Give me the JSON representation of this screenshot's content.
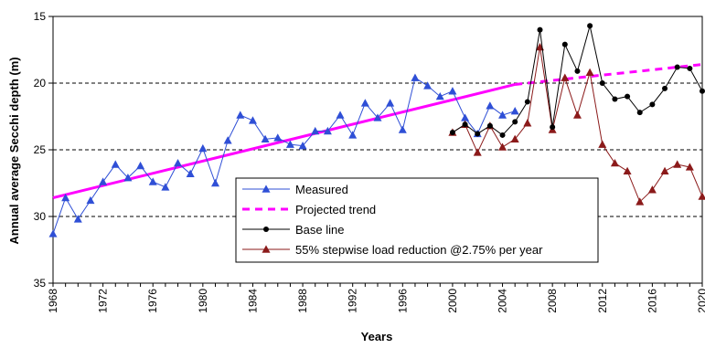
{
  "chart_data": {
    "type": "line",
    "title": "",
    "xlabel": "Years",
    "ylabel": "Annual average Secchi depth (m)",
    "xlim": [
      1968,
      2020
    ],
    "ylim": [
      15,
      35
    ],
    "y_inverted": true,
    "grid": "horizontal dashed",
    "legend_position": "lower-center",
    "x_ticks": [
      "1968",
      "1972",
      "1976",
      "1980",
      "1984",
      "1988",
      "1992",
      "1996",
      "2000",
      "2004",
      "2008",
      "2012",
      "2016",
      "2020"
    ],
    "y_ticks": [
      "15",
      "20",
      "25",
      "30",
      "35"
    ],
    "series": [
      {
        "name": "Measured",
        "color": "#2f4fd6",
        "marker": "triangle",
        "style": "solid",
        "x": [
          1968,
          1969,
          1970,
          1971,
          1972,
          1973,
          1974,
          1975,
          1976,
          1977,
          1978,
          1979,
          1980,
          1981,
          1982,
          1983,
          1984,
          1985,
          1986,
          1987,
          1988,
          1989,
          1990,
          1991,
          1992,
          1993,
          1994,
          1995,
          1996,
          1997,
          1998,
          1999,
          2000,
          2001,
          2002,
          2003,
          2004,
          2005
        ],
        "y": [
          31.3,
          28.6,
          30.2,
          28.8,
          27.4,
          26.1,
          27.1,
          26.2,
          27.4,
          27.8,
          26.0,
          26.8,
          24.9,
          27.5,
          24.3,
          22.4,
          22.8,
          24.2,
          24.1,
          24.6,
          24.7,
          23.6,
          23.6,
          22.4,
          23.9,
          21.5,
          22.6,
          21.5,
          23.5,
          19.6,
          20.2,
          21.0,
          20.6,
          22.6,
          23.8,
          21.7,
          22.4,
          22.1
        ]
      },
      {
        "name": "Projected trend",
        "color": "#ff00ff",
        "marker": "none",
        "style": "dashed",
        "x": [
          2005,
          2020
        ],
        "y": [
          20.1,
          18.6
        ]
      },
      {
        "name": "Base line",
        "color": "#000000",
        "marker": "circle",
        "style": "solid",
        "x": [
          2000,
          2001,
          2002,
          2003,
          2004,
          2005,
          2006,
          2007,
          2008,
          2009,
          2010,
          2011,
          2012,
          2013,
          2014,
          2015,
          2016,
          2017,
          2018,
          2019,
          2020
        ],
        "y": [
          23.7,
          23.1,
          23.8,
          23.2,
          23.9,
          22.9,
          21.4,
          16.0,
          23.3,
          17.1,
          19.1,
          15.7,
          20.0,
          21.2,
          21.0,
          22.2,
          21.6,
          20.4,
          18.8,
          18.9,
          20.6
        ]
      },
      {
        "name": "55% stepwise load reduction @2.75% per year",
        "color": "#8b1a1a",
        "marker": "triangle",
        "style": "solid",
        "x": [
          2000,
          2001,
          2002,
          2003,
          2004,
          2005,
          2006,
          2007,
          2008,
          2009,
          2010,
          2011,
          2012,
          2013,
          2014,
          2015,
          2016,
          2017,
          2018,
          2019,
          2020
        ],
        "y": [
          23.7,
          23.1,
          25.2,
          23.2,
          24.8,
          24.2,
          23.0,
          17.3,
          23.5,
          19.6,
          22.4,
          19.2,
          24.6,
          26.0,
          26.6,
          28.9,
          28.0,
          26.6,
          26.1,
          26.3,
          28.5
        ]
      }
    ],
    "trend_line": {
      "color": "#ff00ff",
      "style": "solid",
      "x": [
        1968,
        2005
      ],
      "y": [
        28.6,
        20.1
      ]
    }
  }
}
